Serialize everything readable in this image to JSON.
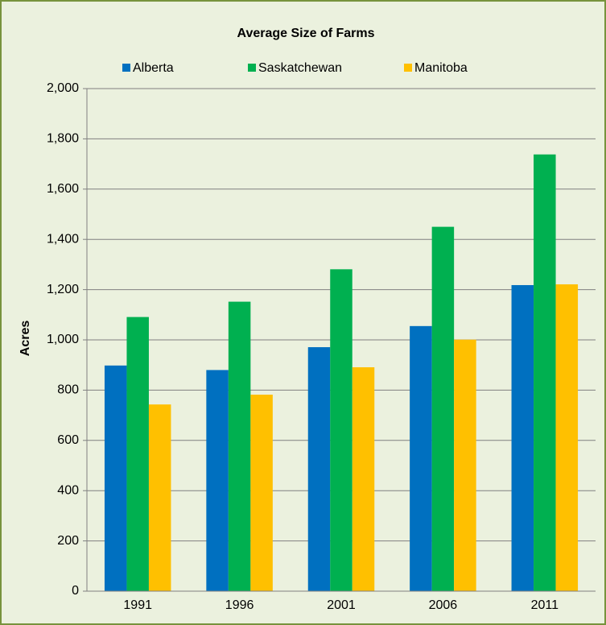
{
  "chart_data": {
    "type": "bar",
    "title": "Average Size of Farms",
    "ylabel": "Acres",
    "categories": [
      "1991",
      "1996",
      "2001",
      "2006",
      "2011"
    ],
    "series": [
      {
        "name": "Alberta",
        "color": "#0070c0",
        "values": [
          898,
          880,
          971,
          1055,
          1218
        ]
      },
      {
        "name": "Saskatchewan",
        "color": "#00b050",
        "values": [
          1091,
          1152,
          1281,
          1450,
          1738
        ]
      },
      {
        "name": "Manitoba",
        "color": "#ffc000",
        "values": [
          743,
          782,
          891,
          1001,
          1221
        ]
      }
    ],
    "ylim": [
      0,
      2000
    ],
    "yticks": [
      0,
      200,
      400,
      600,
      800,
      {
        "value": 1000,
        "label": "1,000"
      },
      {
        "value": 1200,
        "label": "1,200"
      },
      {
        "value": 1400,
        "label": "1,400"
      },
      {
        "value": 1600,
        "label": "1,600"
      },
      {
        "value": 1800,
        "label": "1,800"
      },
      {
        "value": 2000,
        "label": "2,000"
      }
    ],
    "grid": true,
    "legend": "top"
  }
}
